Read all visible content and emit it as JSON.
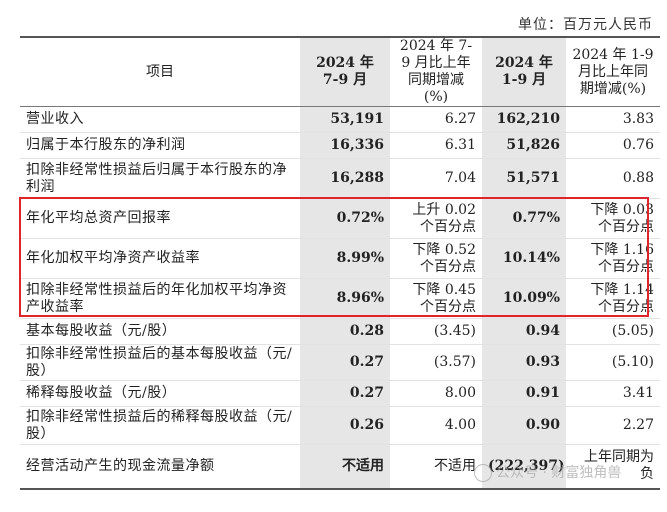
{
  "unit_label": "单位：百万元人民币",
  "headers": [
    "项目",
    "2024 年 7-9 月",
    "2024 年 7-9 月比上年同期增减(%)",
    "2024 年 1-9 月",
    "2024 年 1-9 月比上年同期增减(%)"
  ],
  "rows": [
    {
      "item": "营业收入",
      "q3": "53,191",
      "q3_chg": "6.27",
      "ytd": "162,210",
      "ytd_chg": "3.83"
    },
    {
      "item": "归属于本行股东的净利润",
      "q3": "16,336",
      "q3_chg": "6.31",
      "ytd": "51,826",
      "ytd_chg": "0.76"
    },
    {
      "item": "扣除非经常性损益后归属于本行股东的净利润",
      "q3": "16,288",
      "q3_chg": "7.04",
      "ytd": "51,571",
      "ytd_chg": "0.88"
    },
    {
      "item": "年化平均总资产回报率",
      "q3": "0.72%",
      "q3_chg": "上升 0.02 个百分点",
      "ytd": "0.77%",
      "ytd_chg": "下降 0.03 个百分点"
    },
    {
      "item": "年化加权平均净资产收益率",
      "q3": "8.99%",
      "q3_chg": "下降 0.52 个百分点",
      "ytd": "10.14%",
      "ytd_chg": "下降 1.16 个百分点"
    },
    {
      "item": "扣除非经常性损益后的年化加权平均净资产收益率",
      "q3": "8.96%",
      "q3_chg": "下降 0.45 个百分点",
      "ytd": "10.09%",
      "ytd_chg": "下降 1.14 个百分点"
    },
    {
      "item": "基本每股收益（元/股）",
      "q3": "0.28",
      "q3_chg": "(3.45)",
      "ytd": "0.94",
      "ytd_chg": "(5.05)"
    },
    {
      "item": "扣除非经常性损益后的基本每股收益（元/股）",
      "q3": "0.27",
      "q3_chg": "(3.57)",
      "ytd": "0.93",
      "ytd_chg": "(5.10)"
    },
    {
      "item": "稀释每股收益（元/股）",
      "q3": "0.27",
      "q3_chg": "8.00",
      "ytd": "0.91",
      "ytd_chg": "3.41"
    },
    {
      "item": "扣除非经常性损益后的稀释每股收益（元/股）",
      "q3": "0.26",
      "q3_chg": "4.00",
      "ytd": "0.90",
      "ytd_chg": "2.27"
    },
    {
      "item": "经营活动产生的现金流量净额",
      "q3": "不适用",
      "q3_chg": "不适用",
      "ytd": "(222,397)",
      "ytd_chg": "上年同期为负"
    }
  ],
  "watermark": "公众号 · 财富独角兽",
  "colors": {
    "highlight": "#e0242b",
    "shade": "#e6e6e6"
  }
}
